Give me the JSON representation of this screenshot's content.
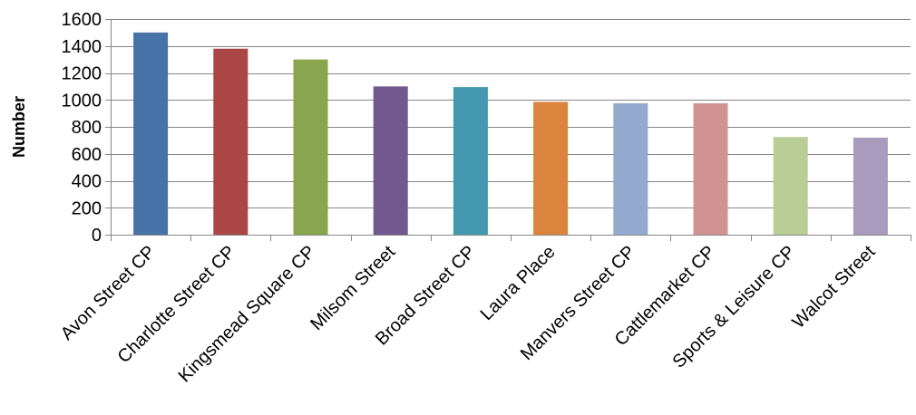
{
  "chart_data": {
    "type": "bar",
    "title": "",
    "xlabel": "",
    "ylabel": "Number",
    "ylim": [
      0,
      1600
    ],
    "y_ticks": [
      0,
      200,
      400,
      600,
      800,
      1000,
      1200,
      1400,
      1600
    ],
    "grid": "horizontal",
    "legend": "none",
    "categories": [
      "Avon Street CP",
      "Charlotte Street CP",
      "Kingsmead Square CP",
      "Milsom Street",
      "Broad Street CP",
      "Laura Place",
      "Manvers Street CP",
      "Cattlemarket CP",
      "Sports & Leisure CP",
      "Walcot Street"
    ],
    "values": [
      1500,
      1380,
      1300,
      1100,
      1095,
      985,
      975,
      975,
      725,
      720
    ],
    "bar_colors": [
      "#4572A7",
      "#AA4643",
      "#89A54E",
      "#71588F",
      "#4198AF",
      "#DB843D",
      "#93A9CF",
      "#D19392",
      "#B9CD96",
      "#A99BBD"
    ],
    "gridline_color": "#868686",
    "axis_color": "#868686"
  }
}
